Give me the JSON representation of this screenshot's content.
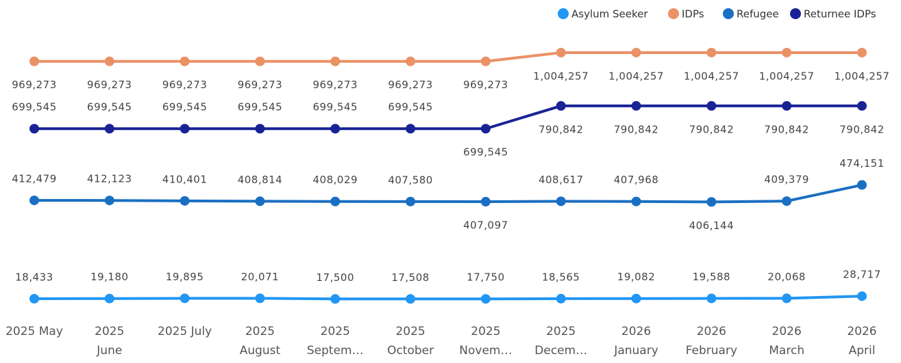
{
  "chart_data": {
    "type": "line",
    "categories": [
      "2025 May",
      "2025\nJune",
      "2025 July",
      "2025\nAugust",
      "2025\nSeptem…",
      "2025\nOctober",
      "2025\nNovem…",
      "2025\nDecem…",
      "2026\nJanuary",
      "2026\nFebruary",
      "2026\nMarch",
      "2026\nApril"
    ],
    "ylim": [
      0,
      1100000
    ],
    "legend": "top-right",
    "series": [
      {
        "name": "Asylum Seeker",
        "color": "#2196f3",
        "values": [
          18433,
          19180,
          19895,
          20071,
          17500,
          17508,
          17750,
          18565,
          19082,
          19588,
          20068,
          28717
        ],
        "value_labels": [
          "18,433",
          "19,180",
          "19,895",
          "20,071",
          "17,500",
          "17,508",
          "17,750",
          "18,565",
          "19,082",
          "19,588",
          "20,068",
          "28,717"
        ]
      },
      {
        "name": "IDPs",
        "color": "#eb9166",
        "values": [
          969273,
          969273,
          969273,
          969273,
          969273,
          969273,
          969273,
          1004257,
          1004257,
          1004257,
          1004257,
          1004257
        ],
        "value_labels": [
          "969,273",
          "969,273",
          "969,273",
          "969,273",
          "969,273",
          "969,273",
          "969,273",
          "1,004,257",
          "1,004,257",
          "1,004,257",
          "1,004,257",
          "1,004,257"
        ]
      },
      {
        "name": "Refugee",
        "color": "#1a6fc2",
        "values": [
          412479,
          412123,
          410401,
          408814,
          408029,
          407580,
          407097,
          408617,
          407968,
          406144,
          409379,
          474151
        ],
        "value_labels": [
          "412,479",
          "412,123",
          "410,401",
          "408,814",
          "408,029",
          "407,580",
          "407,097",
          "408,617",
          "407,968",
          "406,144",
          "409,379",
          "474,151"
        ]
      },
      {
        "name": "Returnee IDPs",
        "color": "#1a2395",
        "values": [
          699545,
          699545,
          699545,
          699545,
          699545,
          699545,
          699545,
          790842,
          790842,
          790842,
          790842,
          790842
        ],
        "value_labels": [
          "699,545",
          "699,545",
          "699,545",
          "699,545",
          "699,545",
          "699,545",
          "699,545",
          "790,842",
          "790,842",
          "790,842",
          "790,842",
          "790,842"
        ]
      }
    ]
  }
}
